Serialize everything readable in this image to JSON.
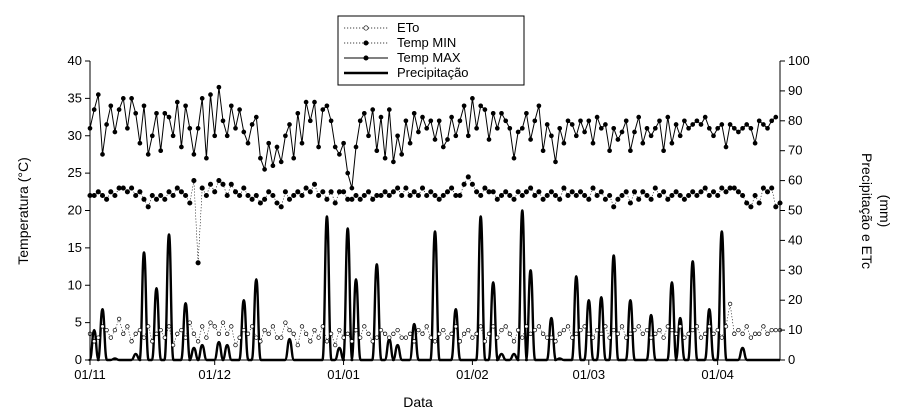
{
  "chart_data": {
    "type": "line",
    "xlabel": "Data",
    "ylabel_left": "Temperatura (°C)",
    "ylabel_right_lines": [
      "Precipitação e ETc",
      "(mm)"
    ],
    "x_tick_labels": [
      "01/11",
      "01/12",
      "01/01",
      "01/02",
      "01/03",
      "01/04"
    ],
    "x_tick_days": [
      0,
      30,
      61,
      92,
      120,
      151
    ],
    "xlim_days": [
      0,
      166
    ],
    "ylim_left": [
      0,
      40
    ],
    "ylim_right": [
      0,
      100
    ],
    "y_ticks_left": [
      0,
      5,
      10,
      15,
      20,
      25,
      30,
      35,
      40
    ],
    "y_ticks_right": [
      0,
      10,
      20,
      30,
      40,
      50,
      60,
      70,
      80,
      90,
      100
    ],
    "legend": {
      "placement": "top-center",
      "entries": [
        {
          "label": "ETo",
          "style": "dotted-open-circle"
        },
        {
          "label": "Temp MIN",
          "style": "dotted-filled-circle"
        },
        {
          "label": "Temp MAX",
          "style": "solid-filled-circle"
        },
        {
          "label": "Precipitação",
          "style": "thick-solid-line"
        }
      ]
    },
    "series": [
      {
        "name": "Temp MAX",
        "axis": "left",
        "values": [
          31.0,
          33.5,
          35.5,
          27.5,
          31.5,
          34.0,
          30.5,
          33.5,
          35.0,
          31.0,
          35.0,
          33.0,
          29.0,
          34.0,
          27.5,
          30.0,
          33.0,
          28.0,
          33.0,
          32.5,
          30.0,
          34.5,
          28.5,
          34.0,
          31.0,
          27.5,
          31.0,
          35.0,
          27.0,
          35.5,
          30.0,
          36.5,
          32.0,
          30.0,
          34.0,
          31.0,
          33.5,
          30.5,
          29.0,
          31.5,
          32.5,
          27.0,
          25.5,
          29.0,
          26.0,
          28.5,
          26.5,
          30.0,
          31.5,
          27.0,
          33.0,
          29.0,
          34.5,
          32.0,
          34.5,
          28.5,
          33.5,
          34.0,
          32.0,
          28.5,
          27.5,
          29.0,
          25.0,
          23.0,
          28.5,
          32.0,
          33.0,
          30.0,
          33.5,
          28.0,
          32.5,
          27.0,
          33.5,
          26.5,
          30.0,
          27.5,
          32.0,
          29.0,
          33.0,
          30.5,
          32.5,
          31.0,
          32.0,
          29.5,
          32.0,
          28.5,
          29.5,
          32.5,
          30.0,
          32.0,
          34.0,
          30.0,
          35.0,
          31.0,
          34.0,
          33.5,
          29.5,
          33.0,
          31.0,
          33.0,
          32.0,
          31.0,
          27.0,
          30.5,
          31.0,
          33.0,
          29.5,
          32.0,
          34.0,
          28.0,
          31.5,
          30.0,
          26.5,
          31.0,
          29.0,
          32.0,
          31.5,
          30.0,
          32.0,
          30.5,
          32.0,
          29.0,
          32.5,
          31.0,
          31.5,
          28.0,
          31.0,
          29.5,
          30.5,
          32.0,
          28.0,
          30.5,
          32.5,
          29.0,
          31.0,
          30.0,
          31.0,
          32.0,
          28.0,
          32.5,
          29.0,
          31.5,
          30.0,
          32.0,
          31.0,
          31.5,
          32.0,
          31.5,
          32.5,
          31.0,
          30.0,
          31.0,
          31.5,
          28.5,
          31.5,
          31.0,
          30.5,
          31.0,
          31.5,
          31.0,
          29.0,
          32.0,
          31.5,
          31.0,
          32.0,
          32.5
        ]
      },
      {
        "name": "Temp MIN",
        "axis": "left",
        "values": [
          22.0,
          22.0,
          22.5,
          22.0,
          21.5,
          22.5,
          22.0,
          23.0,
          23.0,
          22.5,
          23.0,
          22.0,
          22.5,
          21.5,
          20.5,
          22.0,
          21.5,
          22.0,
          21.5,
          22.5,
          22.0,
          23.0,
          22.5,
          22.0,
          21.0,
          24.0,
          13.0,
          23.0,
          22.0,
          23.5,
          22.5,
          24.0,
          23.5,
          22.0,
          23.5,
          22.5,
          22.0,
          23.0,
          22.0,
          21.5,
          22.0,
          21.0,
          21.5,
          22.5,
          22.0,
          21.0,
          20.5,
          22.5,
          21.5,
          22.0,
          22.5,
          22.0,
          23.0,
          22.5,
          23.5,
          22.0,
          22.5,
          21.5,
          22.5,
          21.0,
          22.5,
          22.5,
          21.5,
          21.5,
          22.0,
          21.5,
          22.0,
          22.5,
          21.5,
          22.0,
          22.0,
          22.5,
          22.0,
          22.5,
          23.0,
          22.0,
          23.0,
          22.0,
          22.5,
          22.0,
          23.0,
          22.0,
          22.5,
          22.0,
          21.5,
          22.0,
          22.5,
          23.0,
          22.0,
          22.0,
          23.5,
          24.5,
          23.5,
          22.5,
          22.0,
          23.0,
          22.5,
          22.5,
          21.5,
          22.0,
          22.5,
          22.0,
          21.5,
          22.5,
          22.0,
          22.5,
          23.0,
          22.0,
          22.5,
          21.5,
          22.0,
          22.5,
          22.0,
          21.5,
          23.0,
          22.0,
          22.5,
          22.0,
          22.5,
          22.0,
          21.5,
          23.0,
          22.0,
          22.5,
          21.5,
          22.0,
          20.5,
          21.5,
          22.0,
          22.5,
          21.0,
          22.5,
          21.5,
          22.5,
          22.0,
          21.5,
          23.0,
          22.0,
          22.5,
          21.5,
          22.0,
          22.5,
          22.0,
          21.5,
          22.0,
          22.5,
          22.0,
          22.5,
          23.0,
          22.0,
          22.5,
          22.0,
          23.0,
          22.5,
          23.0,
          23.0,
          22.5,
          22.0,
          21.0,
          20.5,
          22.0,
          21.0,
          23.0,
          22.5,
          23.0,
          20.5,
          21.0
        ]
      },
      {
        "name": "ETo",
        "axis": "left",
        "values": [
          3.5,
          2.5,
          3.0,
          4.5,
          4.0,
          3.0,
          4.0,
          5.5,
          3.5,
          4.5,
          2.5,
          3.5,
          4.0,
          3.0,
          4.5,
          2.5,
          3.5,
          4.0,
          3.0,
          4.5,
          2.0,
          3.5,
          4.0,
          3.0,
          5.0,
          3.5,
          2.5,
          4.5,
          3.0,
          5.0,
          4.5,
          3.5,
          5.0,
          3.5,
          4.5,
          2.0,
          3.0,
          4.0,
          3.5,
          4.5,
          3.0,
          2.5,
          4.0,
          3.5,
          4.5,
          3.0,
          3.0,
          5.0,
          4.0,
          3.5,
          2.0,
          4.5,
          3.5,
          2.5,
          4.0,
          3.0,
          4.5,
          2.5,
          3.5,
          2.0,
          4.0,
          3.0,
          3.5,
          2.5,
          4.0,
          3.0,
          4.5,
          3.5,
          2.5,
          3.0,
          4.0,
          3.5,
          3.0,
          3.5,
          4.0,
          3.0,
          3.0,
          3.5,
          2.5,
          4.0,
          3.5,
          4.5,
          3.0,
          2.5,
          3.5,
          4.0,
          3.0,
          3.5,
          4.5,
          2.5,
          3.5,
          4.0,
          3.0,
          3.5,
          4.5,
          2.5,
          3.5,
          4.5,
          3.0,
          4.0,
          4.5,
          3.5,
          2.5,
          4.0,
          3.0,
          4.5,
          3.5,
          4.0,
          4.5,
          3.5,
          3.0,
          3.0,
          2.5,
          3.5,
          4.0,
          4.5,
          3.0,
          3.5,
          4.0,
          4.5,
          3.5,
          3.0,
          4.0,
          3.5,
          4.5,
          3.0,
          4.0,
          3.5,
          4.5,
          3.0,
          3.5,
          4.0,
          4.5,
          3.5,
          4.0,
          3.0,
          3.5,
          4.0,
          3.0,
          4.5,
          4.0,
          3.5,
          4.5,
          3.0,
          3.5,
          4.0,
          4.5,
          3.0,
          3.5,
          4.5,
          3.5,
          4.0,
          3.0,
          4.5,
          7.5,
          3.5,
          4.0,
          3.5,
          4.5,
          3.0,
          3.5,
          3.5,
          4.5,
          3.5,
          4.0,
          4.0,
          4.0
        ]
      },
      {
        "name": "Precipitação",
        "axis": "right",
        "peaks": [
          [
            1,
            10
          ],
          [
            3,
            17
          ],
          [
            6,
            0.5
          ],
          [
            11,
            2
          ],
          [
            13,
            36
          ],
          [
            16,
            24
          ],
          [
            19,
            42
          ],
          [
            23,
            19
          ],
          [
            25,
            4
          ],
          [
            27,
            5
          ],
          [
            31,
            6
          ],
          [
            33,
            5
          ],
          [
            37,
            20
          ],
          [
            40,
            27
          ],
          [
            48,
            7
          ],
          [
            57,
            48
          ],
          [
            60,
            4
          ],
          [
            62,
            44
          ],
          [
            64,
            27
          ],
          [
            69,
            32
          ],
          [
            72,
            7
          ],
          [
            74,
            5
          ],
          [
            78,
            12
          ],
          [
            83,
            43
          ],
          [
            88,
            17
          ],
          [
            94,
            48
          ],
          [
            97,
            26
          ],
          [
            99,
            2
          ],
          [
            102,
            2
          ],
          [
            104,
            50
          ],
          [
            106,
            30
          ],
          [
            111,
            14
          ],
          [
            113,
            0.5
          ],
          [
            117,
            28
          ],
          [
            120,
            20
          ],
          [
            123,
            21
          ],
          [
            126,
            35
          ],
          [
            130,
            20
          ],
          [
            135,
            15
          ],
          [
            140,
            26
          ],
          [
            142,
            14
          ],
          [
            145,
            33
          ],
          [
            149,
            17
          ],
          [
            152,
            43
          ],
          [
            157,
            4
          ]
        ]
      }
    ]
  }
}
